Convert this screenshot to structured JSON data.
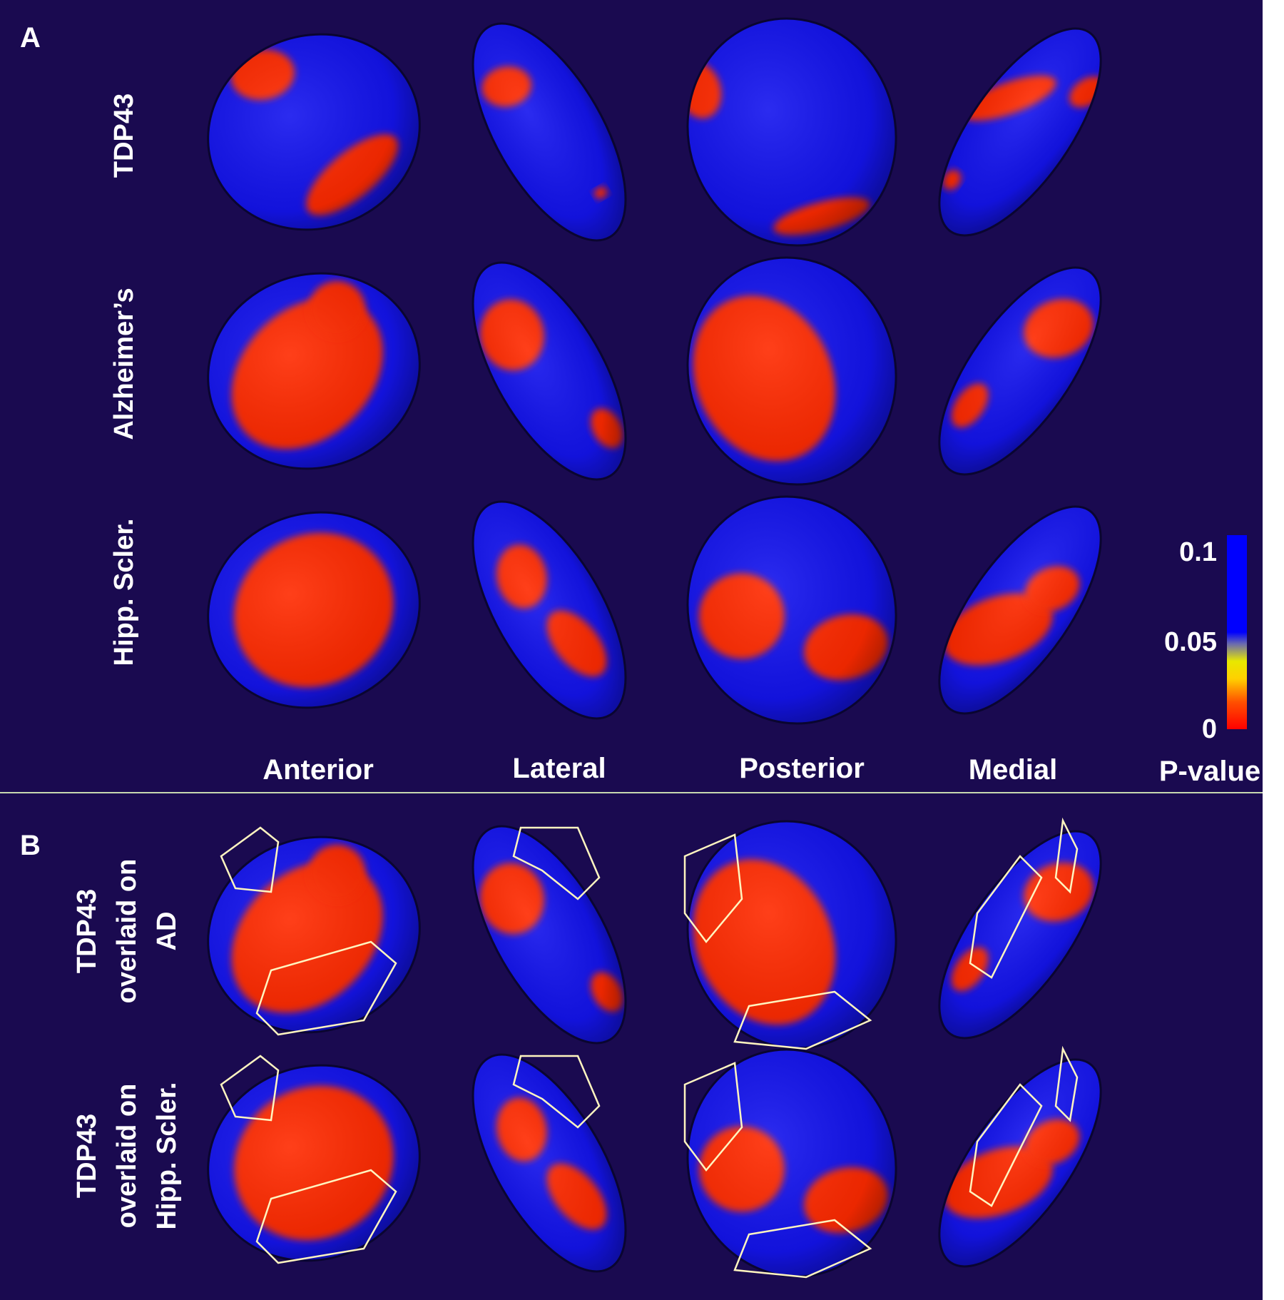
{
  "panel_a": {
    "letter": "A",
    "row_labels": [
      "TDP43",
      "Alzheimer’s",
      "Hipp. Scler."
    ],
    "view_labels": [
      "Anterior",
      "Lateral",
      "Posterior",
      "Medial"
    ]
  },
  "panel_b": {
    "letter": "B",
    "row_labels": [
      {
        "line1": "TDP43",
        "line2": "overlaid on",
        "line3": "AD"
      },
      {
        "line1": "TDP43",
        "line2": "overlaid on",
        "line3": "Hipp. Scler."
      }
    ]
  },
  "colorbar": {
    "title": "P-value",
    "ticks": [
      "0.1",
      "0.05",
      "0"
    ],
    "colors": {
      "high": "#0000ff",
      "mid": "#ffff00",
      "low": "#ff0000"
    }
  },
  "colors": {
    "background": "#1a0a50",
    "surface": "#1414ee",
    "significant": "#ff2a00",
    "outline": "#fff5c0",
    "divider": "#c8d8b0"
  }
}
